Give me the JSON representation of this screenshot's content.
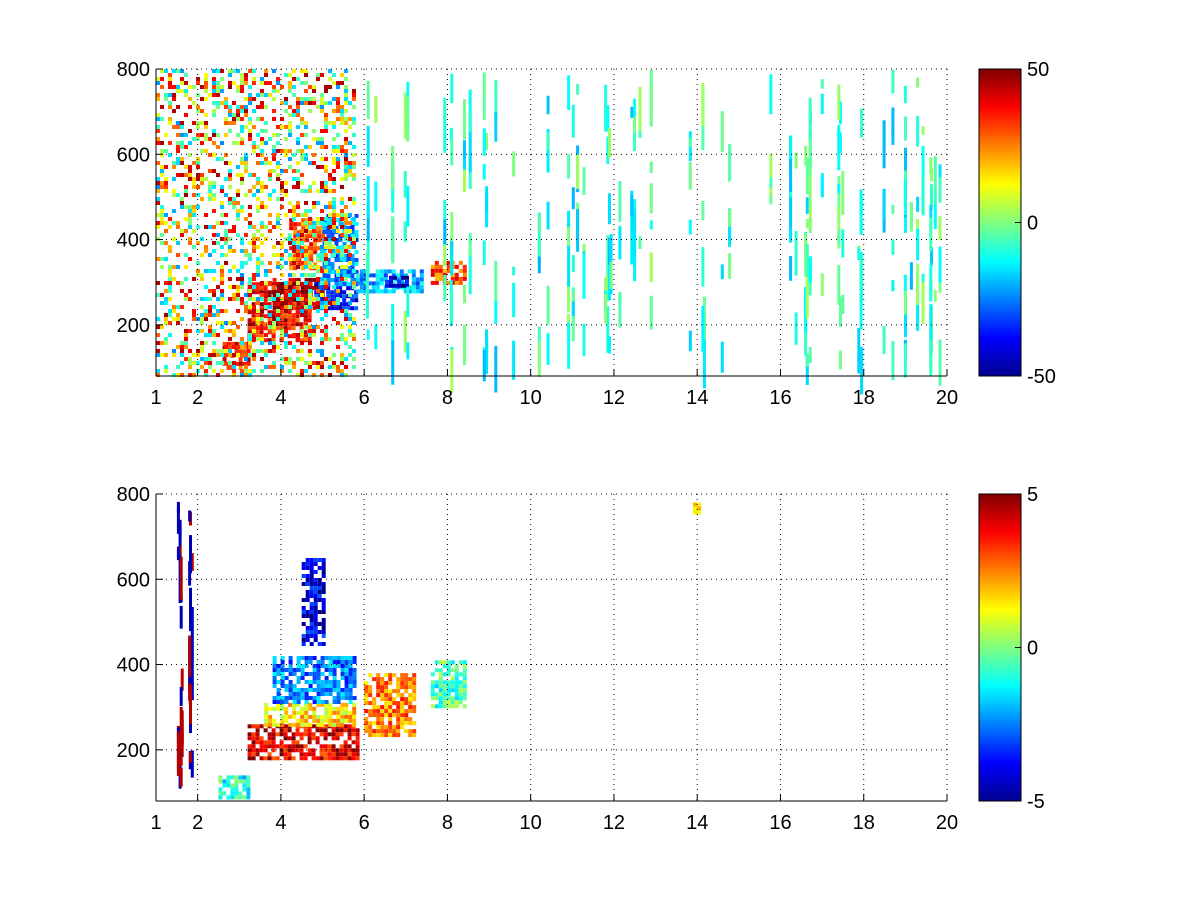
{
  "chart_data": [
    {
      "type": "heatmap",
      "title": "",
      "xlabel": "",
      "ylabel": "",
      "xlim": [
        1,
        20
      ],
      "ylim": [
        80,
        800
      ],
      "grid": true,
      "colormap": "jet",
      "x_ticks": [
        1,
        2,
        4,
        6,
        8,
        10,
        12,
        14,
        16,
        18,
        20
      ],
      "x_tick_labels": [
        "1",
        "2",
        "4",
        "6",
        "8",
        "10",
        "12",
        "14",
        "16",
        "18",
        "20"
      ],
      "y_ticks": [
        200,
        400,
        600,
        800
      ],
      "y_tick_labels": [
        "200",
        "400",
        "600",
        "800"
      ],
      "colorbar": {
        "range": [
          -50,
          50
        ],
        "tick_labels": [
          "50",
          "0",
          "-50"
        ],
        "placement": "right"
      },
      "features": [
        {
          "x": [
            2.6,
            3.2
          ],
          "y_start": 100,
          "y_end": 160,
          "value": 35
        },
        {
          "x": [
            3.2,
            4.7
          ],
          "y_start": 160,
          "y_end": 300,
          "value": 38
        },
        {
          "x": [
            3.8,
            5.0
          ],
          "y_start": 240,
          "y_end": 310,
          "value": 45
        },
        {
          "x": [
            4.2,
            5.0
          ],
          "y_start": 330,
          "y_end": 450,
          "value": 30
        },
        {
          "x": [
            4.8,
            5.8
          ],
          "y_start": 240,
          "y_end": 300,
          "value": -35
        },
        {
          "x": [
            5.0,
            5.8
          ],
          "y_start": 300,
          "y_end": 460,
          "value": -22
        },
        {
          "x": [
            5.8,
            7.4
          ],
          "y_start": 280,
          "y_end": 330,
          "value": -20
        },
        {
          "x": [
            6.5,
            7.0
          ],
          "y_start": 295,
          "y_end": 315,
          "value": -42
        },
        {
          "x": [
            7.6,
            8.4
          ],
          "y_start": 300,
          "y_end": 350,
          "value": 30
        },
        {
          "x": [
            1.0,
            5.8
          ],
          "y_start": 80,
          "y_end": 800,
          "value": 12,
          "density": "scattered"
        },
        {
          "x": [
            6.0,
            20.0
          ],
          "y_start": 80,
          "y_end": 800,
          "value": -8,
          "density": "sparse-vertical-streaks"
        }
      ]
    },
    {
      "type": "heatmap",
      "title": "",
      "xlabel": "",
      "ylabel": "",
      "xlim": [
        1,
        20
      ],
      "ylim": [
        80,
        800
      ],
      "grid": true,
      "colormap": "jet",
      "x_ticks": [
        1,
        2,
        4,
        6,
        8,
        10,
        12,
        14,
        16,
        18,
        20
      ],
      "x_tick_labels": [
        "1",
        "2",
        "4",
        "6",
        "8",
        "10",
        "12",
        "14",
        "16",
        "18",
        "20"
      ],
      "y_ticks": [
        200,
        400,
        600,
        800
      ],
      "y_tick_labels": [
        "200",
        "400",
        "600",
        "800"
      ],
      "colorbar": {
        "range": [
          -5,
          5
        ],
        "tick_labels": [
          "5",
          "0",
          "-5"
        ],
        "placement": "right"
      },
      "features": [
        {
          "x": [
            2.5,
            3.2
          ],
          "y_start": 90,
          "y_end": 140,
          "value": -1
        },
        {
          "x": [
            3.2,
            5.8
          ],
          "y_start": 180,
          "y_end": 260,
          "value": 4
        },
        {
          "x": [
            3.6,
            5.8
          ],
          "y_start": 260,
          "y_end": 310,
          "value": 1.5
        },
        {
          "x": [
            3.8,
            5.8
          ],
          "y_start": 310,
          "y_end": 420,
          "value": -2.5
        },
        {
          "x": [
            4.5,
            5.0
          ],
          "y_start": 450,
          "y_end": 650,
          "value": -4
        },
        {
          "x": [
            6.0,
            7.2
          ],
          "y_start": 230,
          "y_end": 380,
          "value": 2.5
        },
        {
          "x": [
            7.6,
            8.4
          ],
          "y_start": 300,
          "y_end": 410,
          "value": -0.5
        },
        {
          "x": [
            1.5,
            1.9
          ],
          "y_start": 80,
          "y_end": 800,
          "value": 0,
          "density": "dark-vertical-streaks"
        },
        {
          "x": [
            13.9,
            14.0
          ],
          "y_start": 760,
          "y_end": 780,
          "value": 1
        }
      ]
    }
  ]
}
